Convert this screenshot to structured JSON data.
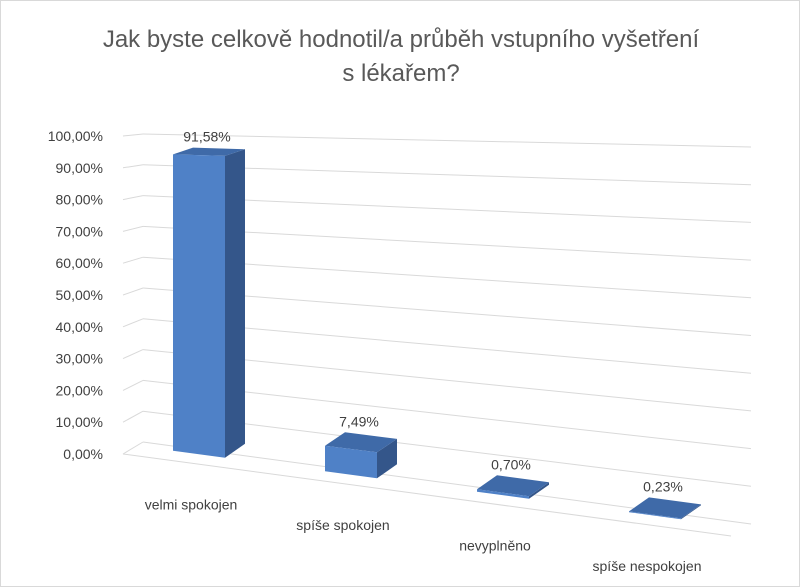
{
  "chart_data": {
    "type": "bar",
    "title_lines": [
      "Jak byste celkově hodnotil/a průběh vstupního vyšetření",
      "s lékařem?"
    ],
    "categories": [
      "velmi spokojen",
      "spíše spokojen",
      "nevyplněno",
      "spíše nespokojen"
    ],
    "values": [
      91.58,
      7.49,
      0.7,
      0.23
    ],
    "value_labels": [
      "91,58%",
      "7,49%",
      "0,70%",
      "0,23%"
    ],
    "y_ticks": [
      "0,00%",
      "10,00%",
      "20,00%",
      "30,00%",
      "40,00%",
      "50,00%",
      "60,00%",
      "70,00%",
      "80,00%",
      "90,00%",
      "100,00%"
    ],
    "ylim": [
      0,
      100
    ],
    "grid": true,
    "legend": "none",
    "colors": {
      "front": "#4f81c7",
      "side": "#34568a",
      "top": "#3f6aa8",
      "grid": "#d9d9d9",
      "text": "#404040",
      "title": "#595959"
    }
  }
}
